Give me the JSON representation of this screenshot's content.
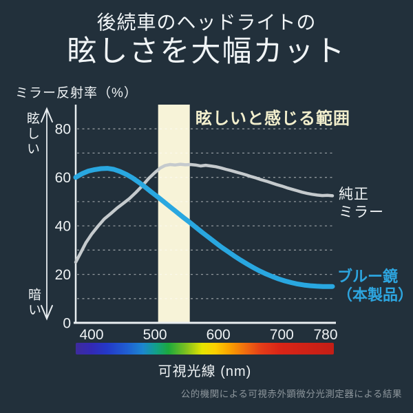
{
  "header": {
    "title_line1": "後続車のヘッドライトの",
    "title_line2": "眩しさを大幅カット"
  },
  "footnote": "公的機関による可視赤外顕微分光測定器による結果",
  "colors": {
    "background": "#22303b",
    "text": "#eef2f4",
    "axis": "#e9eef1",
    "grid": "#ffffff",
    "band": "#f7f3d8",
    "band_label": "#f2efcd",
    "series_blue": "#29a7e0",
    "series_gray": "#c5cacd",
    "footnote_text": "#8d969c"
  },
  "chart_data": {
    "type": "line",
    "ylabel": "ミラー反射率（%）",
    "xlabel": "可視光線 (nm)",
    "axis_high_label": "眩しい",
    "axis_low_label": "暗い",
    "xlim": [
      375,
      780
    ],
    "ylim": [
      0,
      90
    ],
    "xticks": [
      400,
      500,
      600,
      700,
      780
    ],
    "yticks": [
      0,
      20,
      40,
      60,
      80
    ],
    "grid_on": true,
    "grid_step": 10,
    "legend_position": "right-of-line",
    "band": {
      "from_nm": 505,
      "to_nm": 555,
      "label": "眩しいと感じる範囲",
      "color": "#f7f3d8"
    },
    "series": [
      {
        "name": "純正ミラー",
        "label_lines": "純正\nミラー",
        "color": "#c5cacd",
        "width": 4.5,
        "points": [
          [
            375,
            25
          ],
          [
            383,
            29
          ],
          [
            391,
            33
          ],
          [
            400,
            36.5
          ],
          [
            410,
            39.8
          ],
          [
            420,
            42.8
          ],
          [
            430,
            45
          ],
          [
            440,
            47.3
          ],
          [
            450,
            49.3
          ],
          [
            460,
            51.3
          ],
          [
            470,
            53.8
          ],
          [
            480,
            56.5
          ],
          [
            490,
            59.5
          ],
          [
            500,
            62
          ],
          [
            508,
            63.8
          ],
          [
            516,
            64.9
          ],
          [
            524,
            65.3
          ],
          [
            532,
            65.1
          ],
          [
            540,
            65.4
          ],
          [
            548,
            65.2
          ],
          [
            556,
            65.3
          ],
          [
            564,
            65.1
          ],
          [
            572,
            64.7
          ],
          [
            580,
            65
          ],
          [
            588,
            64.7
          ],
          [
            596,
            64.4
          ],
          [
            604,
            63.9
          ],
          [
            612,
            63.3
          ],
          [
            620,
            62.8
          ],
          [
            628,
            62.2
          ],
          [
            636,
            61.6
          ],
          [
            644,
            61
          ],
          [
            652,
            60.3
          ],
          [
            660,
            59.7
          ],
          [
            668,
            59
          ],
          [
            676,
            58.4
          ],
          [
            684,
            57.7
          ],
          [
            692,
            57
          ],
          [
            700,
            56.4
          ],
          [
            708,
            55.7
          ],
          [
            716,
            55.1
          ],
          [
            724,
            54.5
          ],
          [
            732,
            53.9
          ],
          [
            740,
            53.4
          ],
          [
            748,
            53
          ],
          [
            756,
            52.7
          ],
          [
            764,
            52.5
          ],
          [
            772,
            52.6
          ],
          [
            780,
            52.4
          ]
        ]
      },
      {
        "name": "ブルー鏡（本製品）",
        "label_lines": "ブルー鏡\n（本製品）",
        "color": "#29a7e0",
        "width": 7,
        "points": [
          [
            375,
            60
          ],
          [
            385,
            61.5
          ],
          [
            395,
            62.6
          ],
          [
            405,
            63.2
          ],
          [
            415,
            63.6
          ],
          [
            425,
            63.7
          ],
          [
            435,
            63.3
          ],
          [
            445,
            62.4
          ],
          [
            455,
            61.2
          ],
          [
            465,
            59.7
          ],
          [
            475,
            57.9
          ],
          [
            485,
            55.9
          ],
          [
            495,
            53.8
          ],
          [
            505,
            51.8
          ],
          [
            515,
            49.7
          ],
          [
            525,
            47.6
          ],
          [
            535,
            45.5
          ],
          [
            545,
            43.4
          ],
          [
            555,
            41.4
          ],
          [
            565,
            39.3
          ],
          [
            575,
            37.2
          ],
          [
            585,
            35.2
          ],
          [
            595,
            33.2
          ],
          [
            605,
            31.2
          ],
          [
            615,
            29.4
          ],
          [
            625,
            27.6
          ],
          [
            635,
            25.9
          ],
          [
            645,
            24.3
          ],
          [
            655,
            22.8
          ],
          [
            665,
            21.4
          ],
          [
            675,
            20.2
          ],
          [
            685,
            19.1
          ],
          [
            695,
            18.1
          ],
          [
            705,
            17.3
          ],
          [
            715,
            16.6
          ],
          [
            725,
            16
          ],
          [
            735,
            15.6
          ],
          [
            745,
            15.3
          ],
          [
            755,
            15.1
          ],
          [
            765,
            15
          ],
          [
            775,
            15
          ],
          [
            780,
            15
          ]
        ]
      }
    ],
    "spectrum_bar": {
      "stops": [
        {
          "c": "#3e2b9d",
          "p": 0
        },
        {
          "c": "#3329b4",
          "p": 6
        },
        {
          "c": "#2438c8",
          "p": 12
        },
        {
          "c": "#1f5fd2",
          "p": 20
        },
        {
          "c": "#1c86cf",
          "p": 26
        },
        {
          "c": "#12a08b",
          "p": 31
        },
        {
          "c": "#1ca93c",
          "p": 36
        },
        {
          "c": "#83c11e",
          "p": 43
        },
        {
          "c": "#e5e400",
          "p": 49
        },
        {
          "c": "#fbd000",
          "p": 54
        },
        {
          "c": "#f99e00",
          "p": 60
        },
        {
          "c": "#f06a10",
          "p": 66
        },
        {
          "c": "#e43c18",
          "p": 72
        },
        {
          "c": "#da2517",
          "p": 79
        },
        {
          "c": "#c41e16",
          "p": 100
        }
      ]
    }
  }
}
